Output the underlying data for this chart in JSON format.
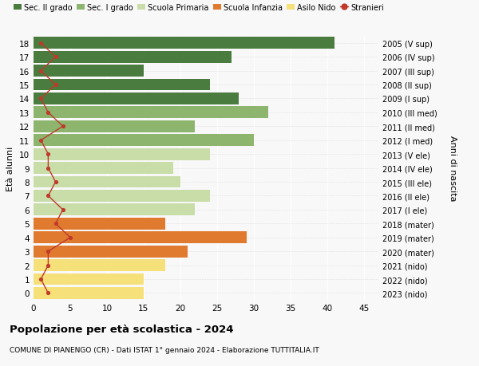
{
  "ages": [
    0,
    1,
    2,
    3,
    4,
    5,
    6,
    7,
    8,
    9,
    10,
    11,
    12,
    13,
    14,
    15,
    16,
    17,
    18
  ],
  "years_labels": [
    "2023 (nido)",
    "2022 (nido)",
    "2021 (nido)",
    "2020 (mater)",
    "2019 (mater)",
    "2018 (mater)",
    "2017 (I ele)",
    "2016 (II ele)",
    "2015 (III ele)",
    "2014 (IV ele)",
    "2013 (V ele)",
    "2012 (I med)",
    "2011 (II med)",
    "2010 (III med)",
    "2009 (I sup)",
    "2008 (II sup)",
    "2007 (III sup)",
    "2006 (IV sup)",
    "2005 (V sup)"
  ],
  "bar_values": [
    15,
    15,
    18,
    21,
    29,
    18,
    22,
    24,
    20,
    19,
    24,
    30,
    22,
    32,
    28,
    24,
    15,
    27,
    41
  ],
  "bar_colors": [
    "#f5e07a",
    "#f5e07a",
    "#f5e07a",
    "#e07a2f",
    "#e07a2f",
    "#e07a2f",
    "#c8dda8",
    "#c8dda8",
    "#c8dda8",
    "#c8dda8",
    "#c8dda8",
    "#8db56e",
    "#8db56e",
    "#8db56e",
    "#4a7c3f",
    "#4a7c3f",
    "#4a7c3f",
    "#4a7c3f",
    "#4a7c3f"
  ],
  "stranieri_values": [
    2,
    1,
    2,
    2,
    5,
    3,
    4,
    2,
    3,
    2,
    2,
    1,
    4,
    2,
    1,
    3,
    1,
    3,
    1
  ],
  "legend_labels": [
    "Sec. II grado",
    "Sec. I grado",
    "Scuola Primaria",
    "Scuola Infanzia",
    "Asilo Nido",
    "Stranieri"
  ],
  "legend_colors": [
    "#4a7c3f",
    "#8db56e",
    "#c8dda8",
    "#e07a2f",
    "#f5e07a",
    "#c0392b"
  ],
  "ylabel": "Età alunni",
  "ylabel_right": "Anni di nascita",
  "title": "Popolazione per età scolastica - 2024",
  "subtitle": "COMUNE DI PIANENGO (CR) - Dati ISTAT 1° gennaio 2024 - Elaborazione TUTTITALIA.IT",
  "xlim": [
    0,
    47
  ],
  "xticks": [
    0,
    5,
    10,
    15,
    20,
    25,
    30,
    35,
    40,
    45
  ],
  "bg_color": "#f8f8f8",
  "line_color": "#c0392b",
  "marker_color": "#c0392b"
}
